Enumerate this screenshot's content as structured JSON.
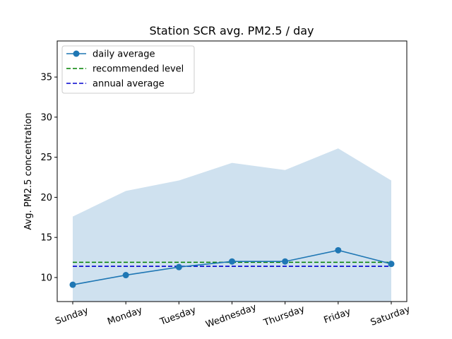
{
  "chart_data": {
    "type": "line",
    "title": "Station SCR avg. PM2.5 / day",
    "xlabel": "",
    "ylabel": "Avg. PM2.5 concentration",
    "categories": [
      "Sunday",
      "Monday",
      "Tuesday",
      "Wednesday",
      "Thursday",
      "Friday",
      "Saturday"
    ],
    "ylim": [
      7.0,
      39.5
    ],
    "yticks": [
      10,
      15,
      20,
      25,
      30,
      35
    ],
    "band": {
      "lower": [
        7.0,
        7.0,
        7.0,
        7.0,
        7.0,
        7.0,
        7.0
      ],
      "upper": [
        17.6,
        20.8,
        22.1,
        24.3,
        23.4,
        26.1,
        22.1
      ],
      "color": "#cfe1ef"
    },
    "series": [
      {
        "name": "daily average",
        "values": [
          9.1,
          10.3,
          11.3,
          12.0,
          12.0,
          13.4,
          11.7
        ],
        "color": "#1f77b4",
        "style": "solid",
        "marker": "circle"
      },
      {
        "name": "recommended level",
        "values": [
          11.9,
          11.9,
          11.9,
          11.9,
          11.9,
          11.9,
          11.9
        ],
        "color": "#008000",
        "style": "dashed"
      },
      {
        "name": "annual average",
        "values": [
          11.4,
          11.4,
          11.4,
          11.4,
          11.4,
          11.4,
          11.4
        ],
        "color": "#0000cd",
        "style": "dashed"
      }
    ],
    "legend_position": "top-left",
    "grid": false
  }
}
